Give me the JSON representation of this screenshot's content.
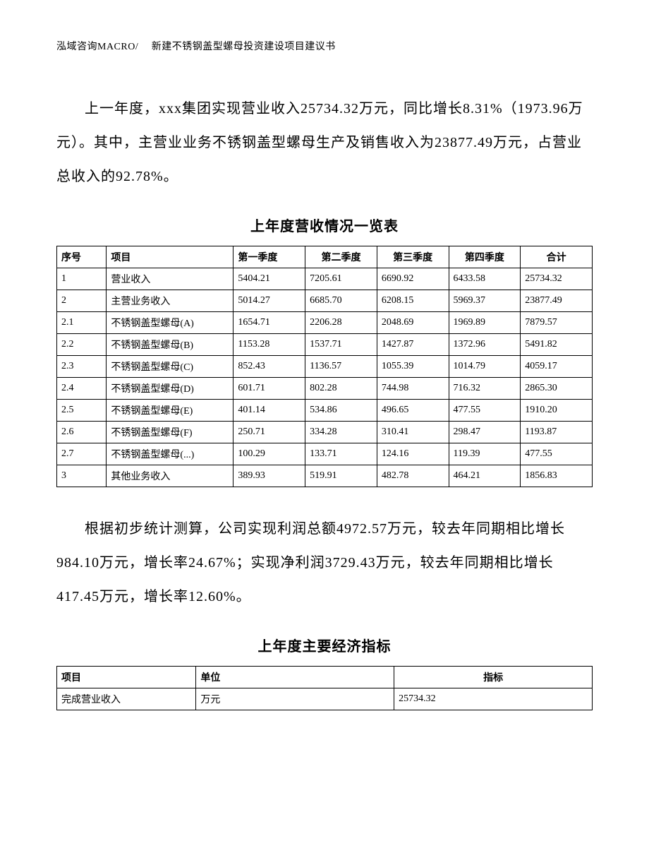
{
  "header": "泓域咨询MACRO/　 新建不锈钢盖型螺母投资建设项目建议书",
  "paragraph1": "上一年度，xxx集团实现营业收入25734.32万元，同比增长8.31%（1973.96万元）。其中，主营业业务不锈钢盖型螺母生产及销售收入为23877.49万元，占营业总收入的92.78%。",
  "table1": {
    "title": "上年度营收情况一览表",
    "columns": [
      "序号",
      "项目",
      "第一季度",
      "第二季度",
      "第三季度",
      "第四季度",
      "合计"
    ],
    "rows": [
      [
        "1",
        "营业收入",
        "5404.21",
        "7205.61",
        "6690.92",
        "6433.58",
        "25734.32"
      ],
      [
        "2",
        "主营业务收入",
        "5014.27",
        "6685.70",
        "6208.15",
        "5969.37",
        "23877.49"
      ],
      [
        "2.1",
        "不锈钢盖型螺母(A)",
        "1654.71",
        "2206.28",
        "2048.69",
        "1969.89",
        "7879.57"
      ],
      [
        "2.2",
        "不锈钢盖型螺母(B)",
        "1153.28",
        "1537.71",
        "1427.87",
        "1372.96",
        "5491.82"
      ],
      [
        "2.3",
        "不锈钢盖型螺母(C)",
        "852.43",
        "1136.57",
        "1055.39",
        "1014.79",
        "4059.17"
      ],
      [
        "2.4",
        "不锈钢盖型螺母(D)",
        "601.71",
        "802.28",
        "744.98",
        "716.32",
        "2865.30"
      ],
      [
        "2.5",
        "不锈钢盖型螺母(E)",
        "401.14",
        "534.86",
        "496.65",
        "477.55",
        "1910.20"
      ],
      [
        "2.6",
        "不锈钢盖型螺母(F)",
        "250.71",
        "334.28",
        "310.41",
        "298.47",
        "1193.87"
      ],
      [
        "2.7",
        "不锈钢盖型螺母(...)",
        "100.29",
        "133.71",
        "124.16",
        "119.39",
        "477.55"
      ],
      [
        "3",
        "其他业务收入",
        "389.93",
        "519.91",
        "482.78",
        "464.21",
        "1856.83"
      ]
    ]
  },
  "paragraph2": "根据初步统计测算，公司实现利润总额4972.57万元，较去年同期相比增长984.10万元，增长率24.67%；实现净利润3729.43万元，较去年同期相比增长417.45万元，增长率12.60%。",
  "table2": {
    "title": "上年度主要经济指标",
    "columns": [
      "项目",
      "单位",
      "指标"
    ],
    "rows": [
      [
        "完成营业收入",
        "万元",
        "25734.32"
      ]
    ]
  }
}
